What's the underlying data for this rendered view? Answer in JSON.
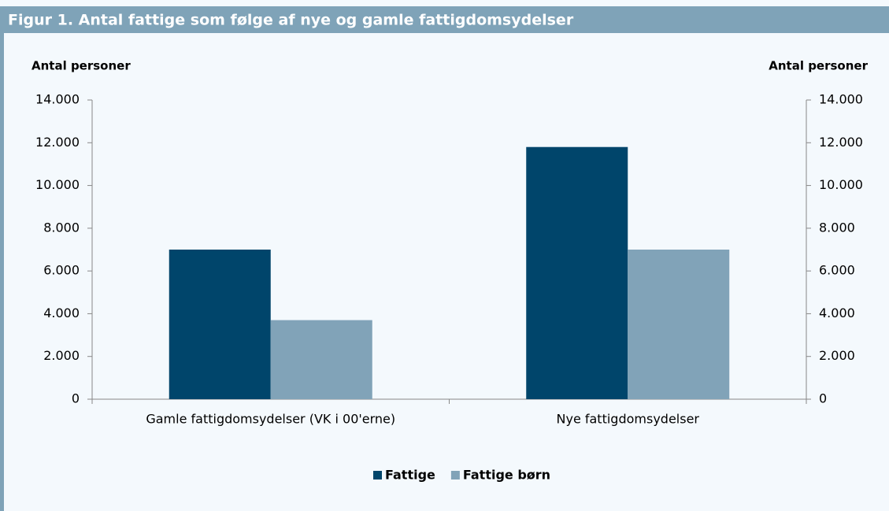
{
  "chart_data": {
    "type": "bar",
    "title": "Figur 1. Antal fattige som følge af nye og gamle fattigdomsydelser",
    "ylabel": "Antal personer",
    "y2label": "Antal personer",
    "categories": [
      "Gamle fattigdomsydelser (VK i 00'erne)",
      "Nye fattigdomsydelser"
    ],
    "series": [
      {
        "name": "Fattige",
        "color": "#00456b",
        "values": [
          7000,
          11800
        ]
      },
      {
        "name": "Fattige børn",
        "color": "#81a3b8",
        "values": [
          3700,
          7000
        ]
      }
    ],
    "ylim": [
      0,
      14000
    ],
    "yticks": [
      0,
      {
        "value": 2000,
        "label": "2.000"
      },
      {
        "value": 4000,
        "label": "4.000"
      },
      {
        "value": 6000,
        "label": "6.000"
      },
      {
        "value": 8000,
        "label": "8.000"
      },
      {
        "value": 10000,
        "label": "10.000"
      },
      {
        "value": 12000,
        "label": "12.000"
      },
      {
        "value": 14000,
        "label": "14.000"
      }
    ],
    "y2lim": [
      0,
      14000
    ],
    "y2ticks": [
      0,
      {
        "value": 2000,
        "label": "2.000"
      },
      {
        "value": 4000,
        "label": "4.000"
      },
      {
        "value": 6000,
        "label": "6.000"
      },
      {
        "value": 8000,
        "label": "8.000"
      },
      {
        "value": 10000,
        "label": "10.000"
      },
      {
        "value": 12000,
        "label": "12.000"
      },
      {
        "value": 14000,
        "label": "14.000"
      }
    ],
    "grid": false,
    "legend": "bottom"
  }
}
